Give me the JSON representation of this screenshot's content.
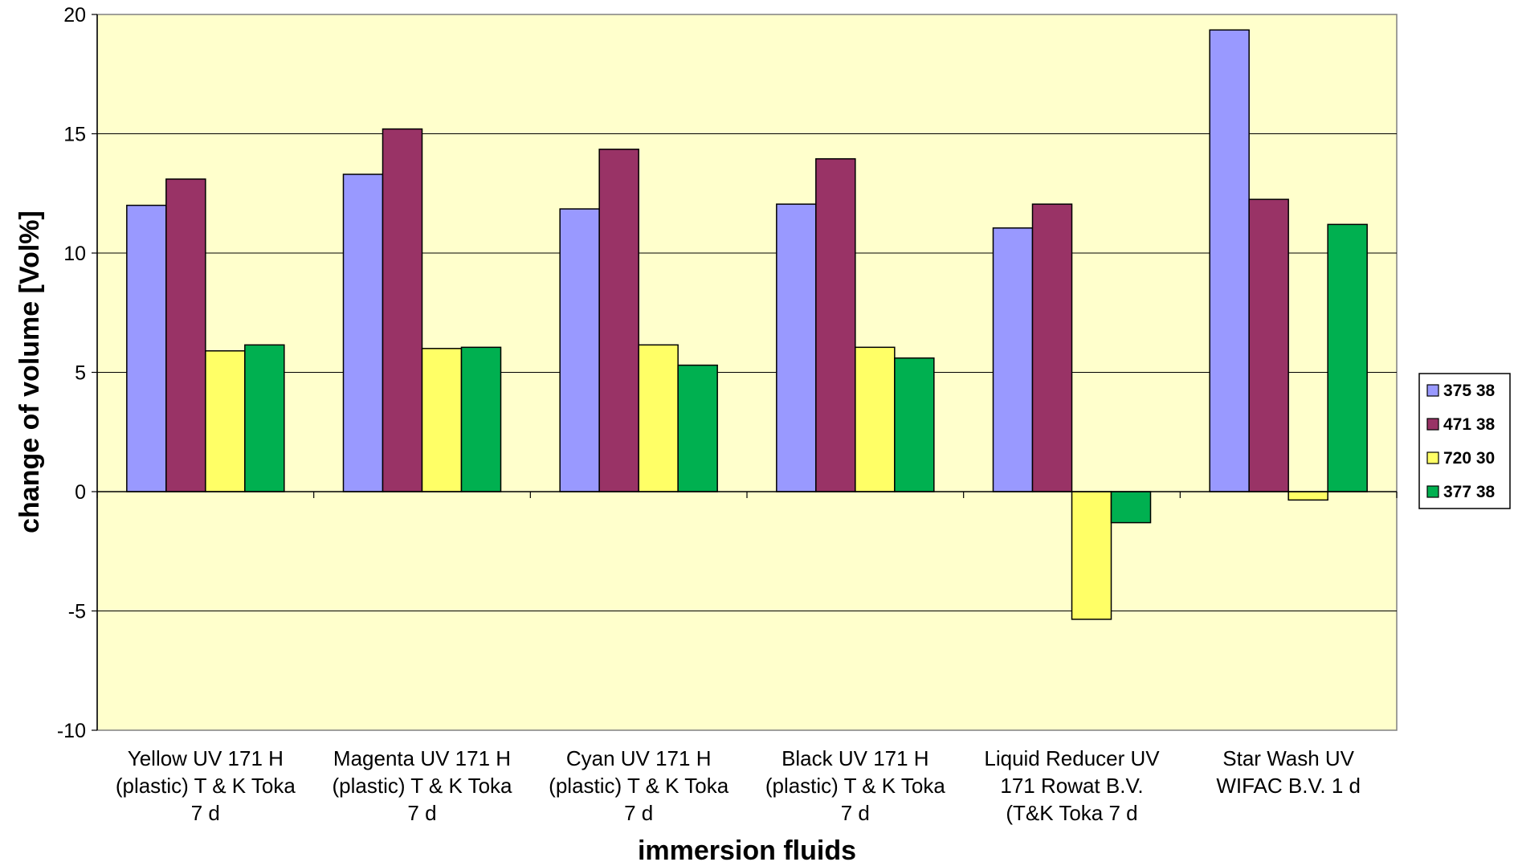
{
  "chart_data": {
    "type": "bar",
    "xlabel": "immersion fluids",
    "ylabel": "change of volume [Vol%]",
    "ylim": [
      -10,
      20
    ],
    "yticks": [
      20,
      15,
      10,
      5,
      0,
      -5,
      -10
    ],
    "grid": true,
    "legend_position": "right",
    "plot_background": "#FFFFCC",
    "categories": [
      [
        "Yellow UV 171 H",
        "(plastic) T & K Toka",
        "7 d"
      ],
      [
        "Magenta UV 171 H",
        "(plastic) T & K Toka",
        "7 d"
      ],
      [
        "Cyan UV 171 H",
        "(plastic) T & K Toka",
        "7 d"
      ],
      [
        "Black UV 171 H",
        "(plastic) T & K Toka",
        "7 d"
      ],
      [
        "Liquid Reducer UV",
        "171 Rowat B.V.",
        "(T&K Toka 7 d"
      ],
      [
        "Star Wash UV",
        "WIFAC B.V. 1 d"
      ]
    ],
    "series": [
      {
        "name": "375 38",
        "color": "#9999FF",
        "values": [
          12.0,
          13.3,
          11.85,
          12.05,
          11.05,
          19.35
        ]
      },
      {
        "name": "471 38",
        "color": "#993366",
        "values": [
          13.1,
          15.2,
          14.35,
          13.95,
          12.05,
          12.25
        ]
      },
      {
        "name": "720 30",
        "color": "#FFFF66",
        "values": [
          5.9,
          6.0,
          6.15,
          6.05,
          -5.35,
          -0.35
        ]
      },
      {
        "name": "377 38",
        "color": "#00B050",
        "values": [
          6.15,
          6.05,
          5.3,
          5.6,
          -1.3,
          11.2
        ]
      }
    ]
  }
}
